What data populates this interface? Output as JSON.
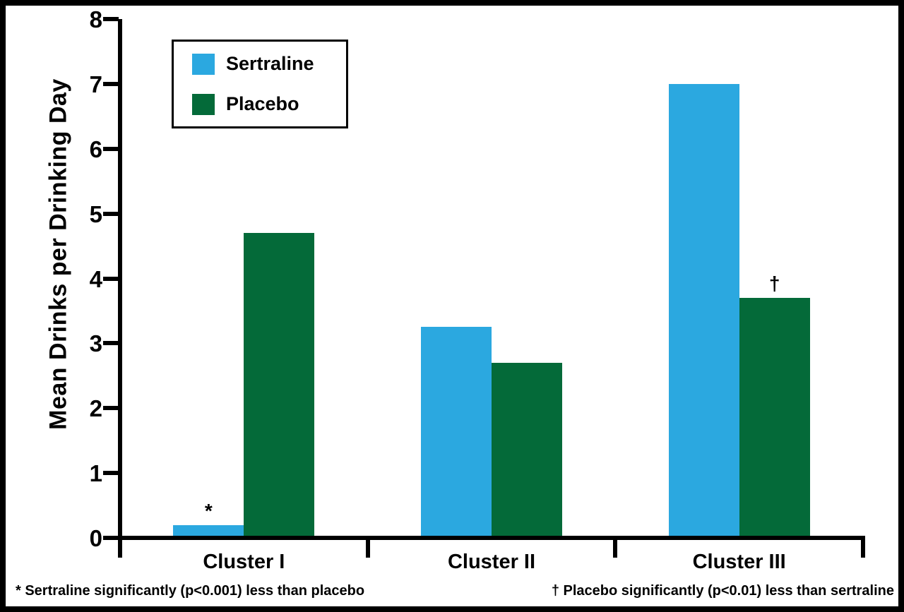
{
  "chart_data": {
    "type": "bar",
    "title": "",
    "xlabel": "",
    "ylabel": "Mean Drinks per Drinking Day",
    "ylim": [
      0,
      8
    ],
    "yticks": [
      0,
      1,
      2,
      3,
      4,
      5,
      6,
      7,
      8
    ],
    "grid": false,
    "legend_position": "top-left",
    "axis_color": "#000000",
    "background_color": "#ffffff",
    "categories": [
      "Cluster I",
      "Cluster II",
      "Cluster III"
    ],
    "series": [
      {
        "name": "Sertraline",
        "color": "#2BA8E0",
        "values": [
          0.2,
          3.25,
          7.0
        ],
        "markers": [
          "*",
          "",
          ""
        ]
      },
      {
        "name": "Placebo",
        "color": "#046A39",
        "values": [
          4.7,
          2.7,
          3.7
        ],
        "markers": [
          "",
          "",
          "†"
        ]
      }
    ],
    "footnotes": [
      "* Sertraline significantly (p<0.001) less than placebo",
      "† Placebo significantly (p<0.01) less than sertraline"
    ]
  }
}
